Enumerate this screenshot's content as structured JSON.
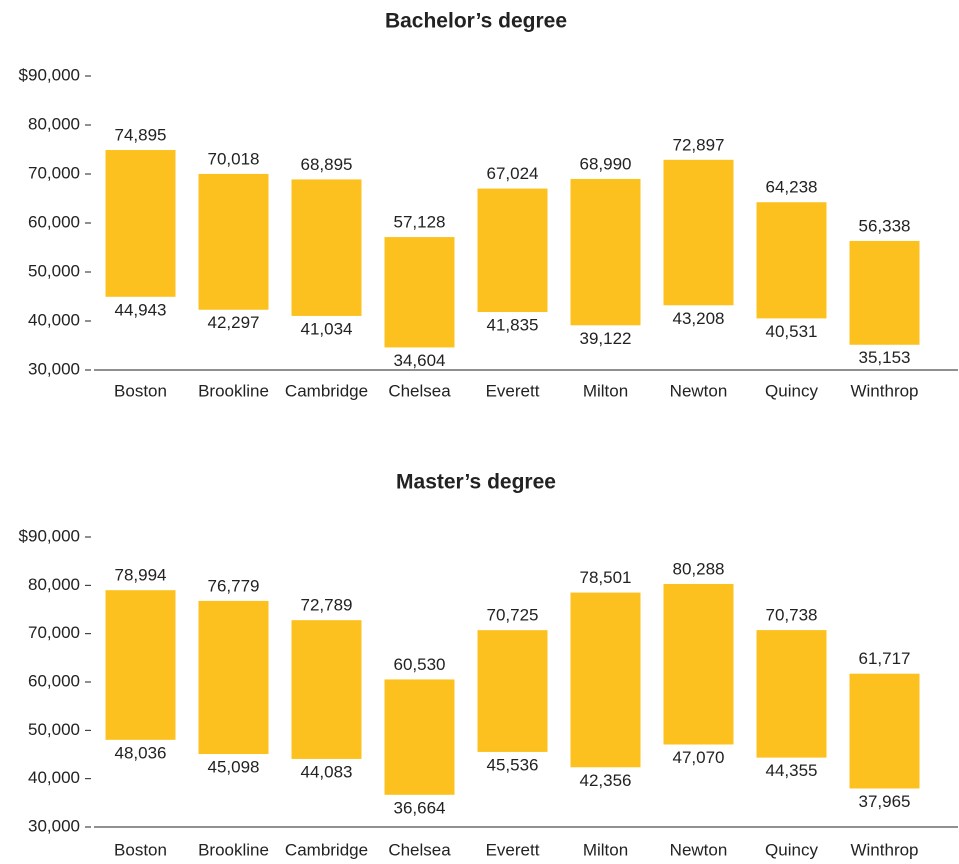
{
  "chart_data": [
    {
      "type": "range",
      "title": "Bachelor’s degree",
      "categories": [
        "Boston",
        "Brookline",
        "Cambridge",
        "Chelsea",
        "Everett",
        "Milton",
        "Newton",
        "Quincy",
        "Winthrop"
      ],
      "values": [
        [
          44943,
          74895
        ],
        [
          42297,
          70018
        ],
        [
          41034,
          68895
        ],
        [
          34604,
          57128
        ],
        [
          41835,
          67024
        ],
        [
          39122,
          68990
        ],
        [
          43208,
          72897
        ],
        [
          40531,
          64238
        ],
        [
          35153,
          56338
        ]
      ],
      "value_labels": [
        [
          "44,943",
          "74,895"
        ],
        [
          "42,297",
          "70,018"
        ],
        [
          "41,034",
          "68,895"
        ],
        [
          "34,604",
          "57,128"
        ],
        [
          "41,835",
          "67,024"
        ],
        [
          "39,122",
          "68,990"
        ],
        [
          "43,208",
          "72,897"
        ],
        [
          "40,531",
          "64,238"
        ],
        [
          "35,153",
          "56,338"
        ]
      ],
      "color": "#fcc11f",
      "ylim": [
        30000,
        90000
      ],
      "yticks": [
        {
          "value": 30000,
          "label": "30,000"
        },
        {
          "value": 40000,
          "label": "40,000"
        },
        {
          "value": 50000,
          "label": "50,000"
        },
        {
          "value": 60000,
          "label": "60,000"
        },
        {
          "value": 70000,
          "label": "70,000"
        },
        {
          "value": 80000,
          "label": "80,000"
        },
        {
          "value": 90000,
          "label": "$90,000"
        }
      ]
    },
    {
      "type": "range",
      "title": "Master’s degree",
      "categories": [
        "Boston",
        "Brookline",
        "Cambridge",
        "Chelsea",
        "Everett",
        "Milton",
        "Newton",
        "Quincy",
        "Winthrop"
      ],
      "values": [
        [
          48036,
          78994
        ],
        [
          45098,
          76779
        ],
        [
          44083,
          72789
        ],
        [
          36664,
          60530
        ],
        [
          45536,
          70725
        ],
        [
          42356,
          78501
        ],
        [
          47070,
          80288
        ],
        [
          44355,
          70738
        ],
        [
          37965,
          61717
        ]
      ],
      "value_labels": [
        [
          "48,036",
          "78,994"
        ],
        [
          "45,098",
          "76,779"
        ],
        [
          "44,083",
          "72,789"
        ],
        [
          "36,664",
          "60,530"
        ],
        [
          "45,536",
          "70,725"
        ],
        [
          "42,356",
          "78,501"
        ],
        [
          "47,070",
          "80,288"
        ],
        [
          "44,355",
          "70,738"
        ],
        [
          "37,965",
          "61,717"
        ]
      ],
      "color": "#fcc11f",
      "ylim": [
        30000,
        90000
      ],
      "yticks": [
        {
          "value": 30000,
          "label": "30,000"
        },
        {
          "value": 40000,
          "label": "40,000"
        },
        {
          "value": 50000,
          "label": "50,000"
        },
        {
          "value": 60000,
          "label": "60,000"
        },
        {
          "value": 70000,
          "label": "70,000"
        },
        {
          "value": 80000,
          "label": "80,000"
        },
        {
          "value": 90000,
          "label": "$90,000"
        }
      ]
    }
  ]
}
